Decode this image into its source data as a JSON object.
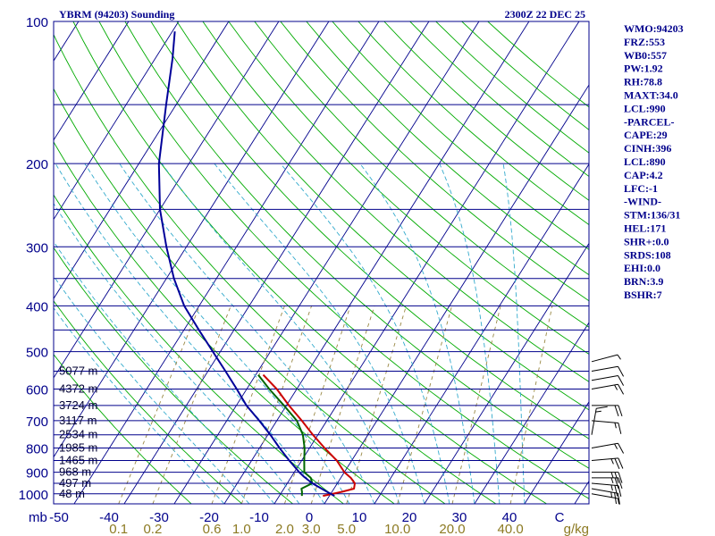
{
  "chart_data": {
    "type": "line",
    "title": "YBRM (94203) Sounding",
    "timestamp": "2300Z 22 DEC 25",
    "y_unit": "mb",
    "x_unit": "C",
    "mixing_ratio_unit": "g/kg",
    "pressure_ticks": [
      100,
      200,
      300,
      400,
      500,
      600,
      700,
      800,
      900,
      1000
    ],
    "isobars": [
      100,
      150,
      200,
      250,
      300,
      350,
      400,
      450,
      500,
      550,
      600,
      650,
      700,
      750,
      800,
      850,
      900,
      950,
      1000
    ],
    "temp_ticks": [
      "-50",
      "-40",
      "-30",
      "-20",
      "-10",
      "0",
      "10",
      "20",
      "30",
      "40",
      "C"
    ],
    "mixing_ratio_labels": [
      "0.1",
      "0.2",
      "0.6",
      "1.0",
      "2.0",
      "3.0",
      "5.0",
      "10.0",
      "20.0",
      "40.0",
      "g/kg"
    ],
    "height_labels": [
      {
        "p": 550,
        "text": "5077 m"
      },
      {
        "p": 600,
        "text": "4372 m"
      },
      {
        "p": 650,
        "text": "3724 m"
      },
      {
        "p": 700,
        "text": "3117 m"
      },
      {
        "p": 750,
        "text": "2534 m"
      },
      {
        "p": 800,
        "text": "1985 m"
      },
      {
        "p": 850,
        "text": "1465 m"
      },
      {
        "p": 900,
        "text": "968 m"
      },
      {
        "p": 950,
        "text": "497 m"
      },
      {
        "p": 1000,
        "text": "48 m"
      }
    ],
    "series": [
      {
        "name": "Temperature",
        "color": "#cc0000",
        "points": [
          [
            1010,
            -1.3
          ],
          [
            990,
            2.0
          ],
          [
            975,
            4.0
          ],
          [
            950,
            3.5
          ],
          [
            925,
            2.0
          ],
          [
            900,
            0.0
          ],
          [
            850,
            -3.0
          ],
          [
            800,
            -7.0
          ],
          [
            750,
            -11.0
          ],
          [
            700,
            -15.0
          ],
          [
            650,
            -19.5
          ],
          [
            600,
            -24.0
          ],
          [
            560,
            -28.5
          ]
        ]
      },
      {
        "name": "Dewpoint",
        "color": "#006600",
        "points": [
          [
            1010,
            -5.5
          ],
          [
            990,
            -6.0
          ],
          [
            975,
            -6.5
          ],
          [
            950,
            -5.0
          ],
          [
            925,
            -6.0
          ],
          [
            900,
            -8.0
          ],
          [
            850,
            -9.5
          ],
          [
            800,
            -11.0
          ],
          [
            750,
            -13.0
          ],
          [
            700,
            -16.0
          ],
          [
            650,
            -20.5
          ],
          [
            600,
            -25.5
          ],
          [
            560,
            -29.5
          ]
        ]
      },
      {
        "name": "Parcel",
        "color": "#000099",
        "points": [
          [
            1010,
            1.0
          ],
          [
            990,
            -1.0
          ],
          [
            950,
            -5.0
          ],
          [
            920,
            -7.5
          ],
          [
            900,
            -9.0
          ],
          [
            850,
            -12.5
          ],
          [
            800,
            -16.0
          ],
          [
            750,
            -19.5
          ],
          [
            700,
            -23.5
          ],
          [
            650,
            -28.0
          ],
          [
            600,
            -32.0
          ],
          [
            550,
            -36.5
          ],
          [
            500,
            -41.5
          ],
          [
            450,
            -47.0
          ],
          [
            400,
            -53.0
          ],
          [
            350,
            -58.5
          ],
          [
            300,
            -64.0
          ],
          [
            250,
            -70.0
          ],
          [
            200,
            -76.0
          ],
          [
            150,
            -82.0
          ],
          [
            120,
            -86.5
          ],
          [
            105,
            -89.5
          ]
        ]
      }
    ],
    "wind_barbs": [
      {
        "p": 1000,
        "dir": 100,
        "kt": 5
      },
      {
        "p": 975,
        "dir": 100,
        "kt": 25
      },
      {
        "p": 950,
        "dir": 95,
        "kt": 25
      },
      {
        "p": 925,
        "dir": 90,
        "kt": 25
      },
      {
        "p": 900,
        "dir": 90,
        "kt": 25
      },
      {
        "p": 850,
        "dir": 85,
        "kt": 25
      },
      {
        "p": 800,
        "dir": 80,
        "kt": 15
      },
      {
        "p": 750,
        "dir": 10,
        "kt": 15
      },
      {
        "p": 700,
        "dir": 95,
        "kt": 15
      },
      {
        "p": 650,
        "dir": 90,
        "kt": 20
      },
      {
        "p": 600,
        "dir": 80,
        "kt": 15
      },
      {
        "p": 575,
        "dir": 80,
        "kt": 10
      },
      {
        "p": 550,
        "dir": 80,
        "kt": 10
      },
      {
        "p": 525,
        "dir": 75,
        "kt": 5
      }
    ],
    "indices": [
      "WMO:94203",
      "FRZ:553",
      "WB0:557",
      "PW:1.92",
      "RH:78.8",
      "MAXT:34.0",
      "LCL:990",
      "-PARCEL-",
      "CAPE:29",
      "CINH:396",
      "LCL:890",
      "CAP:4.2",
      "LFC:-1",
      "-WIND-",
      "STM:136/31",
      "HEL:171",
      "SHR+:0.0",
      "SRDS:108",
      "EHI:0.0",
      "BRN:3.9",
      "BSHR:7"
    ],
    "colors": {
      "frame": "#00008b",
      "isobar": "#00008b",
      "isotherm": "#00008b",
      "dry_adiabat": "#00aa00",
      "moist_adiabat": "#33aacc",
      "mixing_ratio": "#998844",
      "axis_text": "#00008b",
      "mixing_text": "#8c7a22"
    }
  }
}
